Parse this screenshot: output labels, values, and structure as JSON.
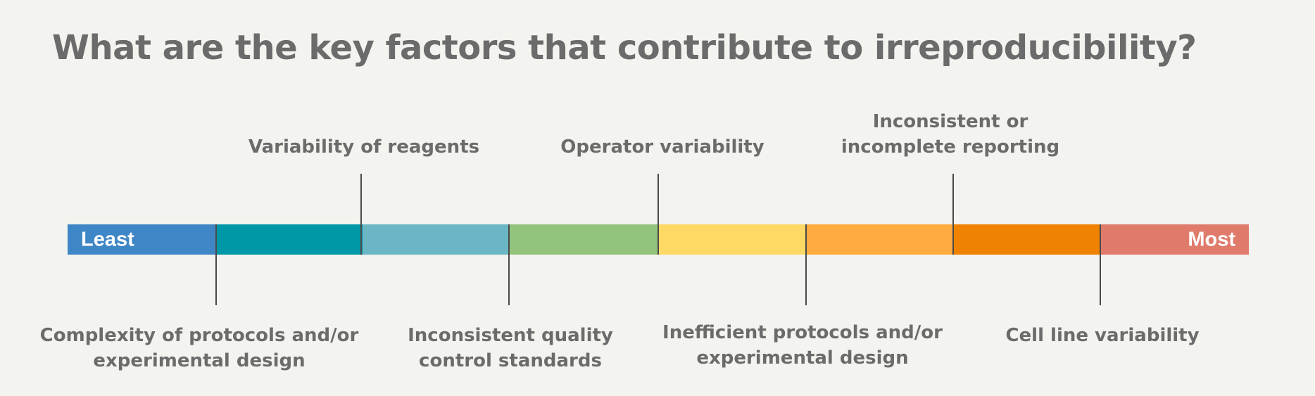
{
  "title": "What are the key factors that contribute to irreproducibility?",
  "scale": {
    "start_label": "Least",
    "end_label": "Most",
    "segment_colors": [
      "#3f86c6",
      "#0097a7",
      "#6ab6c4",
      "#93c47d",
      "#ffd966",
      "#ffab40",
      "#ef8200",
      "#e07b6c"
    ]
  },
  "factors_above": [
    {
      "lines": [
        "Variability of reagents"
      ]
    },
    {
      "lines": [
        "Operator variability"
      ]
    },
    {
      "lines": [
        "Inconsistent or",
        "incomplete reporting"
      ]
    }
  ],
  "factors_below": [
    {
      "lines": [
        "Complexity of protocols and/or",
        "experimental design"
      ]
    },
    {
      "lines": [
        "Inconsistent quality",
        "control standards"
      ]
    },
    {
      "lines": [
        "Inefficient protocols and/or",
        "experimental design"
      ]
    },
    {
      "lines": [
        "Cell line variability"
      ]
    }
  ]
}
